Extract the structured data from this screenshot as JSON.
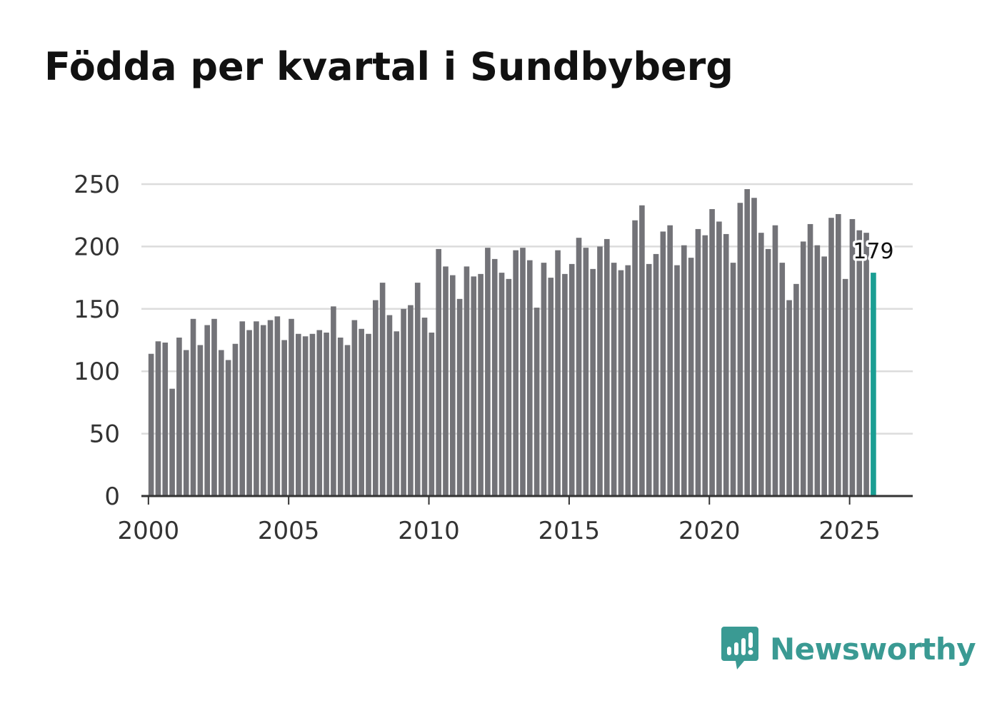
{
  "title": "Födda per kvartal i Sundbyberg",
  "brand": {
    "name": "Newsworthy",
    "icon": "newsworthy-logo-icon"
  },
  "colors": {
    "bar": "#737378",
    "highlight": "#1a9e93",
    "grid": "#dcdcdc",
    "axis": "#333333",
    "brand": "#3a9a93"
  },
  "chart_data": {
    "type": "bar",
    "title": "Födda per kvartal i Sundbyberg",
    "xlabel": "",
    "ylabel": "",
    "ylim": [
      0,
      250
    ],
    "yticks": [
      0,
      50,
      100,
      150,
      200,
      250
    ],
    "xlim": [
      1999.75,
      2027.25
    ],
    "xticks": [
      2000,
      2005,
      2010,
      2015,
      2020,
      2025
    ],
    "xtick_labels": [
      "2000",
      "2005",
      "2010",
      "2015",
      "2020",
      "2025"
    ],
    "grid": true,
    "start_year": 2000,
    "periods_per_year": 4,
    "values": [
      114,
      124,
      123,
      86,
      127,
      117,
      142,
      121,
      137,
      142,
      117,
      109,
      122,
      140,
      133,
      140,
      137,
      141,
      144,
      125,
      142,
      130,
      128,
      130,
      133,
      131,
      152,
      127,
      121,
      141,
      134,
      130,
      157,
      171,
      145,
      132,
      150,
      153,
      171,
      143,
      131,
      198,
      184,
      177,
      158,
      184,
      176,
      178,
      199,
      190,
      179,
      174,
      197,
      199,
      189,
      151,
      187,
      175,
      197,
      178,
      186,
      207,
      199,
      182,
      200,
      206,
      187,
      181,
      185,
      221,
      233,
      186,
      194,
      212,
      217,
      185,
      201,
      191,
      214,
      209,
      230,
      220,
      210,
      187,
      235,
      246,
      239,
      211,
      198,
      217,
      187,
      157,
      170,
      204,
      218,
      201,
      192,
      223,
      226,
      174,
      222,
      213,
      211,
      179
    ],
    "highlight_index": 103,
    "highlight_label": "179"
  }
}
